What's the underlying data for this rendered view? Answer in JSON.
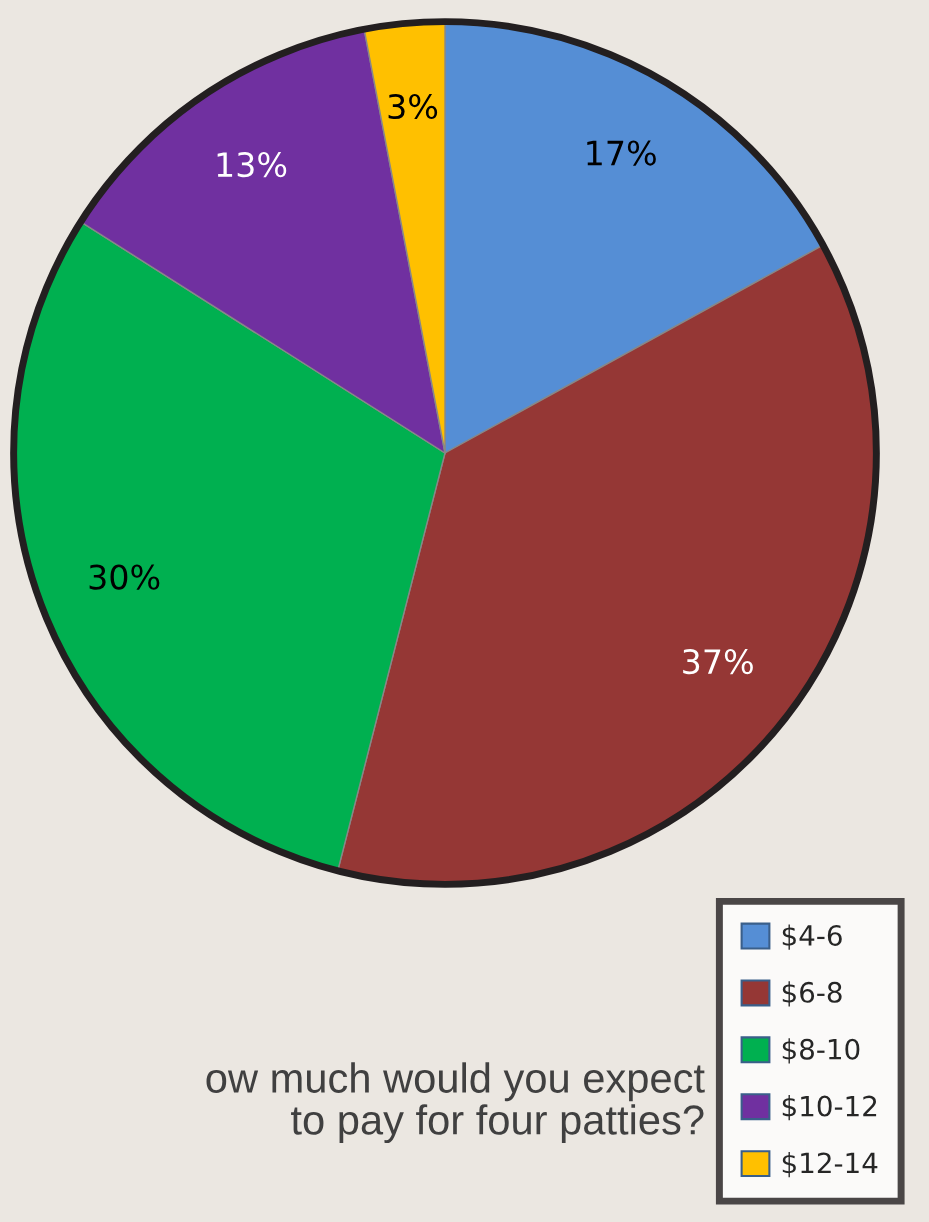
{
  "chart_data": {
    "type": "pie",
    "title": "ow much would you expect\nto pay for four patties?",
    "categories": [
      "$4-6",
      "$6-8",
      "$8-10",
      "$10-12",
      "$12-14"
    ],
    "values": [
      17,
      37,
      30,
      13,
      3
    ],
    "colors": [
      "#558ed5",
      "#953735",
      "#00b050",
      "#7030a0",
      "#ffc000"
    ],
    "value_labels": [
      "17%",
      "37%",
      "30%",
      "13%",
      "3%"
    ],
    "legend": "bottom right"
  }
}
